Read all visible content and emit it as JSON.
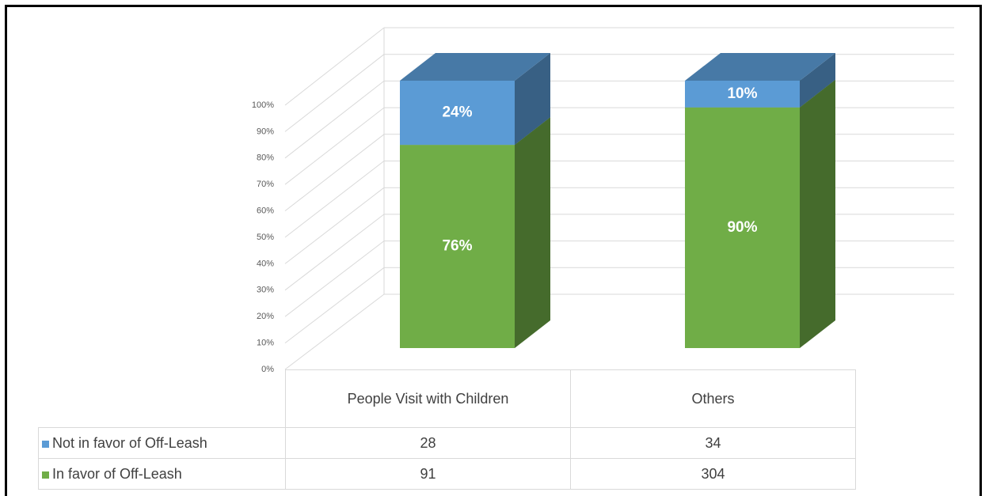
{
  "chart_data": {
    "type": "bar3d_stacked",
    "categories": [
      "People Visit with Children",
      "Others"
    ],
    "series": [
      {
        "name": "Not in favor of Off-Leash",
        "color": "#5b9bd5",
        "values": [
          24,
          10
        ],
        "value_labels": [
          "24%",
          "10%"
        ],
        "counts": [
          28,
          34
        ]
      },
      {
        "name": "In favor of Off-Leash",
        "color": "#70ad47",
        "values": [
          76,
          90
        ],
        "value_labels": [
          "76%",
          "90%"
        ],
        "counts": [
          91,
          304
        ]
      }
    ],
    "ylim": [
      0,
      100
    ],
    "yticks": [
      {
        "value": 0,
        "label": "0%"
      },
      {
        "value": 10,
        "label": "10%"
      },
      {
        "value": 20,
        "label": "20%"
      },
      {
        "value": 30,
        "label": "30%"
      },
      {
        "value": 40,
        "label": "40%"
      },
      {
        "value": 50,
        "label": "50%"
      },
      {
        "value": 60,
        "label": "60%"
      },
      {
        "value": 70,
        "label": "70%"
      },
      {
        "value": 80,
        "label": "80%"
      },
      {
        "value": 90,
        "label": "90%"
      },
      {
        "value": 100,
        "label": "100%"
      }
    ],
    "grid": true
  }
}
